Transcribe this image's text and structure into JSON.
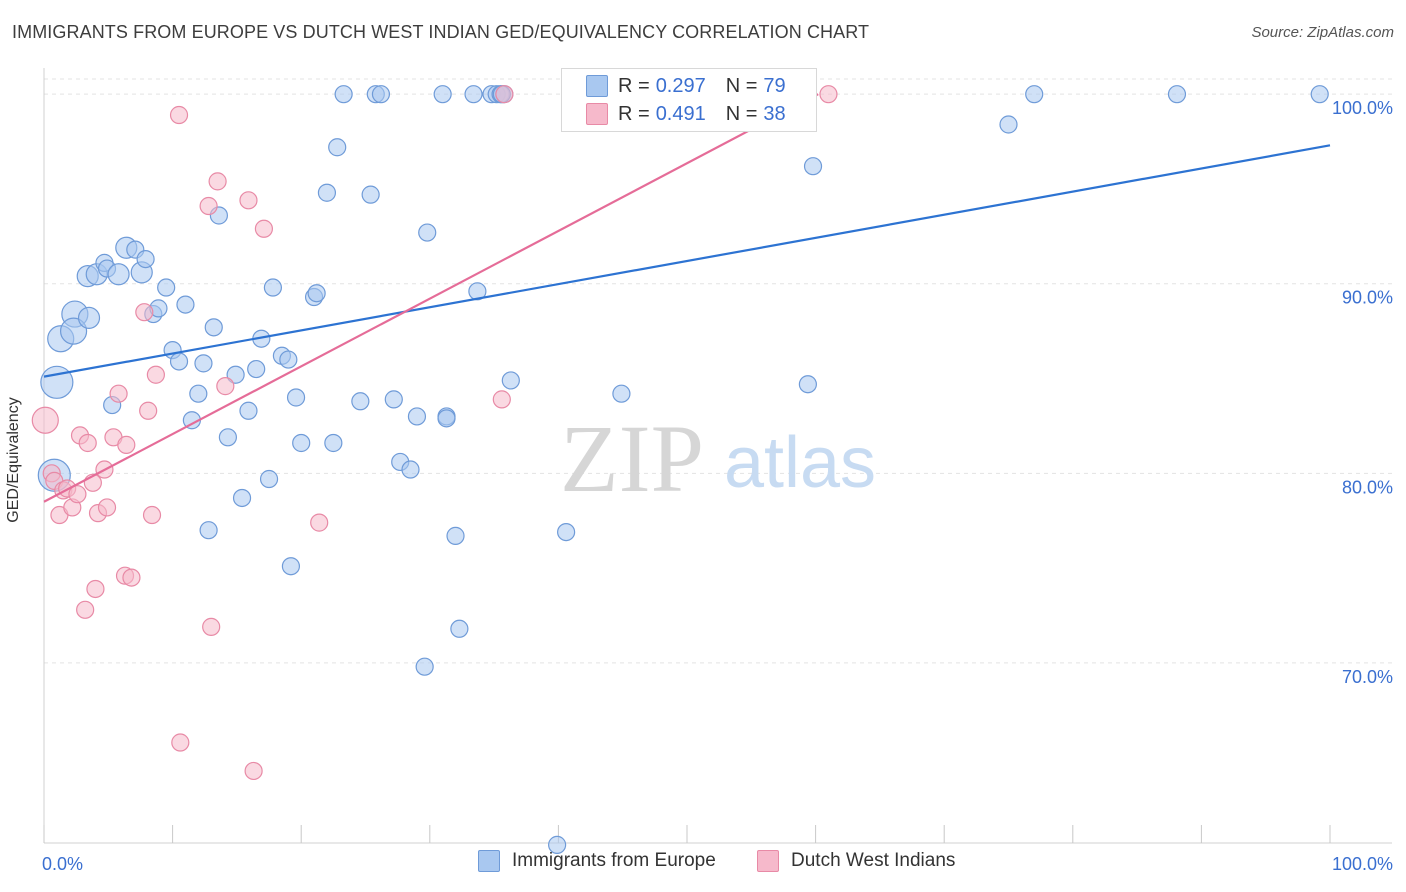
{
  "title": "IMMIGRANTS FROM EUROPE VS DUTCH WEST INDIAN GED/EQUIVALENCY CORRELATION CHART",
  "source": "Source: ZipAtlas.com",
  "watermark": {
    "zip": "ZIP",
    "atlas": "atlas"
  },
  "legend_top": {
    "rows": [
      {
        "r_label": "R =",
        "r_value": "0.297",
        "n_label": "N =",
        "n_value": "79"
      },
      {
        "r_label": "R =",
        "r_value": "0.491",
        "n_label": "N =",
        "n_value": "38"
      }
    ]
  },
  "colors": {
    "blue_fill": "#a9c8f0",
    "blue_stroke": "#6f9bd8",
    "blue_line": "#2d73d2",
    "pink_fill": "#f6b9cb",
    "pink_stroke": "#e88aa6",
    "pink_line": "#e56c98",
    "grid": "#e3e3e3",
    "axis_text": "#3a6fd0"
  },
  "chart_data": {
    "type": "scatter",
    "title": "IMMIGRANTS FROM EUROPE VS DUTCH WEST INDIAN GED/EQUIVALENCY CORRELATION CHART",
    "xlabel": "",
    "ylabel": "GED/Equivalency",
    "xlim": [
      0,
      100
    ],
    "ylim": [
      60.5,
      100.8
    ],
    "x_tick_labels": {
      "left": "0.0%",
      "right": "100.0%"
    },
    "y_ticks": [
      {
        "value": 100,
        "label": "100.0%"
      },
      {
        "value": 90,
        "label": "90.0%"
      },
      {
        "value": 80,
        "label": "80.0%"
      },
      {
        "value": 70,
        "label": "70.0%"
      }
    ],
    "series": [
      {
        "name": "Immigrants from Europe",
        "color": "blue",
        "trend": {
          "x": [
            0,
            100
          ],
          "y": [
            85.1,
            97.3
          ]
        },
        "points": [
          {
            "x": 1.0,
            "y": 84.8,
            "s": "xl"
          },
          {
            "x": 0.8,
            "y": 79.9,
            "s": "xl"
          },
          {
            "x": 1.3,
            "y": 87.1,
            "s": "l"
          },
          {
            "x": 2.4,
            "y": 88.4,
            "s": "l"
          },
          {
            "x": 2.3,
            "y": 87.5,
            "s": "l"
          },
          {
            "x": 3.4,
            "y": 90.4,
            "s": "m"
          },
          {
            "x": 3.5,
            "y": 88.2,
            "s": "m"
          },
          {
            "x": 4.1,
            "y": 90.5,
            "s": "m"
          },
          {
            "x": 4.7,
            "y": 91.1,
            "s": "s"
          },
          {
            "x": 4.9,
            "y": 90.8,
            "s": "s"
          },
          {
            "x": 5.8,
            "y": 90.5,
            "s": "m"
          },
          {
            "x": 6.4,
            "y": 91.9,
            "s": "m"
          },
          {
            "x": 7.1,
            "y": 91.8,
            "s": "s"
          },
          {
            "x": 7.6,
            "y": 90.6,
            "s": "m"
          },
          {
            "x": 7.9,
            "y": 91.3,
            "s": "s"
          },
          {
            "x": 8.5,
            "y": 88.4,
            "s": "s"
          },
          {
            "x": 8.9,
            "y": 88.7,
            "s": "s"
          },
          {
            "x": 5.3,
            "y": 83.6,
            "s": "s"
          },
          {
            "x": 9.5,
            "y": 89.8,
            "s": "s"
          },
          {
            "x": 10.0,
            "y": 86.5,
            "s": "s"
          },
          {
            "x": 10.5,
            "y": 85.9,
            "s": "s"
          },
          {
            "x": 11.0,
            "y": 88.9,
            "s": "s"
          },
          {
            "x": 11.5,
            "y": 82.8,
            "s": "s"
          },
          {
            "x": 12.0,
            "y": 84.2,
            "s": "s"
          },
          {
            "x": 12.4,
            "y": 85.8,
            "s": "s"
          },
          {
            "x": 12.8,
            "y": 77.0,
            "s": "s"
          },
          {
            "x": 13.2,
            "y": 87.7,
            "s": "s"
          },
          {
            "x": 13.6,
            "y": 93.6,
            "s": "s"
          },
          {
            "x": 14.3,
            "y": 81.9,
            "s": "s"
          },
          {
            "x": 14.9,
            "y": 85.2,
            "s": "s"
          },
          {
            "x": 15.4,
            "y": 78.7,
            "s": "s"
          },
          {
            "x": 15.9,
            "y": 83.3,
            "s": "s"
          },
          {
            "x": 16.5,
            "y": 85.5,
            "s": "s"
          },
          {
            "x": 16.9,
            "y": 87.1,
            "s": "s"
          },
          {
            "x": 17.5,
            "y": 79.7,
            "s": "s"
          },
          {
            "x": 17.8,
            "y": 89.8,
            "s": "s"
          },
          {
            "x": 18.5,
            "y": 86.2,
            "s": "s"
          },
          {
            "x": 19.0,
            "y": 86.0,
            "s": "s"
          },
          {
            "x": 19.2,
            "y": 75.1,
            "s": "s"
          },
          {
            "x": 19.6,
            "y": 84.0,
            "s": "s"
          },
          {
            "x": 20.0,
            "y": 81.6,
            "s": "s"
          },
          {
            "x": 21.0,
            "y": 89.3,
            "s": "s"
          },
          {
            "x": 21.2,
            "y": 89.5,
            "s": "s"
          },
          {
            "x": 22.0,
            "y": 94.8,
            "s": "s"
          },
          {
            "x": 22.5,
            "y": 81.6,
            "s": "s"
          },
          {
            "x": 22.8,
            "y": 97.2,
            "s": "s"
          },
          {
            "x": 23.3,
            "y": 100.0,
            "s": "s"
          },
          {
            "x": 24.6,
            "y": 83.8,
            "s": "s"
          },
          {
            "x": 25.4,
            "y": 94.7,
            "s": "s"
          },
          {
            "x": 25.8,
            "y": 100.0,
            "s": "s"
          },
          {
            "x": 26.2,
            "y": 100.0,
            "s": "s"
          },
          {
            "x": 27.2,
            "y": 83.9,
            "s": "s"
          },
          {
            "x": 27.7,
            "y": 80.6,
            "s": "s"
          },
          {
            "x": 28.5,
            "y": 80.2,
            "s": "s"
          },
          {
            "x": 29.0,
            "y": 83.0,
            "s": "s"
          },
          {
            "x": 29.6,
            "y": 69.8,
            "s": "s"
          },
          {
            "x": 29.8,
            "y": 92.7,
            "s": "s"
          },
          {
            "x": 31.0,
            "y": 100.0,
            "s": "s"
          },
          {
            "x": 31.3,
            "y": 83.0,
            "s": "s"
          },
          {
            "x": 31.3,
            "y": 82.9,
            "s": "s"
          },
          {
            "x": 32.0,
            "y": 76.7,
            "s": "s"
          },
          {
            "x": 32.3,
            "y": 71.8,
            "s": "s"
          },
          {
            "x": 33.4,
            "y": 100.0,
            "s": "s"
          },
          {
            "x": 33.7,
            "y": 89.6,
            "s": "s"
          },
          {
            "x": 34.8,
            "y": 100.0,
            "s": "s"
          },
          {
            "x": 35.2,
            "y": 100.0,
            "s": "s"
          },
          {
            "x": 35.5,
            "y": 100.0,
            "s": "s"
          },
          {
            "x": 35.8,
            "y": 100.0,
            "s": "s"
          },
          {
            "x": 36.3,
            "y": 84.9,
            "s": "s"
          },
          {
            "x": 40.6,
            "y": 76.9,
            "s": "s"
          },
          {
            "x": 39.9,
            "y": 60.4,
            "s": "s"
          },
          {
            "x": 44.9,
            "y": 84.2,
            "s": "s"
          },
          {
            "x": 59.4,
            "y": 84.7,
            "s": "s"
          },
          {
            "x": 59.8,
            "y": 96.2,
            "s": "s"
          },
          {
            "x": 75.0,
            "y": 98.4,
            "s": "s"
          },
          {
            "x": 77.0,
            "y": 100.0,
            "s": "s"
          },
          {
            "x": 88.1,
            "y": 100.0,
            "s": "s"
          },
          {
            "x": 99.2,
            "y": 100.0,
            "s": "s"
          },
          {
            "x": 35.6,
            "y": 100.0,
            "s": "s"
          }
        ]
      },
      {
        "name": "Dutch West Indians",
        "color": "pink",
        "trend": {
          "x": [
            0,
            60.2
          ],
          "y": [
            78.5,
            100.0
          ]
        },
        "points": [
          {
            "x": 0.1,
            "y": 82.8,
            "s": "l"
          },
          {
            "x": 0.6,
            "y": 80.0,
            "s": "s"
          },
          {
            "x": 0.8,
            "y": 79.6,
            "s": "s"
          },
          {
            "x": 1.2,
            "y": 77.8,
            "s": "s"
          },
          {
            "x": 1.5,
            "y": 79.1,
            "s": "s"
          },
          {
            "x": 1.8,
            "y": 79.2,
            "s": "s"
          },
          {
            "x": 2.2,
            "y": 78.2,
            "s": "s"
          },
          {
            "x": 2.6,
            "y": 78.9,
            "s": "s"
          },
          {
            "x": 2.8,
            "y": 82.0,
            "s": "s"
          },
          {
            "x": 3.2,
            "y": 72.8,
            "s": "s"
          },
          {
            "x": 3.4,
            "y": 81.6,
            "s": "s"
          },
          {
            "x": 3.8,
            "y": 79.5,
            "s": "s"
          },
          {
            "x": 4.0,
            "y": 73.9,
            "s": "s"
          },
          {
            "x": 4.2,
            "y": 77.9,
            "s": "s"
          },
          {
            "x": 4.7,
            "y": 80.2,
            "s": "s"
          },
          {
            "x": 4.9,
            "y": 78.2,
            "s": "s"
          },
          {
            "x": 5.4,
            "y": 81.9,
            "s": "s"
          },
          {
            "x": 5.8,
            "y": 84.2,
            "s": "s"
          },
          {
            "x": 6.3,
            "y": 74.6,
            "s": "s"
          },
          {
            "x": 6.4,
            "y": 81.5,
            "s": "s"
          },
          {
            "x": 6.8,
            "y": 74.5,
            "s": "s"
          },
          {
            "x": 7.8,
            "y": 88.5,
            "s": "s"
          },
          {
            "x": 8.1,
            "y": 83.3,
            "s": "s"
          },
          {
            "x": 8.4,
            "y": 77.8,
            "s": "s"
          },
          {
            "x": 8.7,
            "y": 85.2,
            "s": "s"
          },
          {
            "x": 10.5,
            "y": 98.9,
            "s": "s"
          },
          {
            "x": 10.6,
            "y": 65.8,
            "s": "s"
          },
          {
            "x": 12.8,
            "y": 94.1,
            "s": "s"
          },
          {
            "x": 13.0,
            "y": 71.9,
            "s": "s"
          },
          {
            "x": 13.5,
            "y": 95.4,
            "s": "s"
          },
          {
            "x": 14.1,
            "y": 84.6,
            "s": "s"
          },
          {
            "x": 15.9,
            "y": 94.4,
            "s": "s"
          },
          {
            "x": 16.3,
            "y": 64.3,
            "s": "s"
          },
          {
            "x": 17.1,
            "y": 92.9,
            "s": "s"
          },
          {
            "x": 21.4,
            "y": 77.4,
            "s": "s"
          },
          {
            "x": 35.8,
            "y": 100.0,
            "s": "s"
          },
          {
            "x": 35.6,
            "y": 83.9,
            "s": "s"
          },
          {
            "x": 61.0,
            "y": 100.0,
            "s": "s"
          }
        ]
      }
    ]
  },
  "legend_bottom": [
    {
      "label": "Immigrants from Europe",
      "color": "blue"
    },
    {
      "label": "Dutch West Indians",
      "color": "pink"
    }
  ]
}
